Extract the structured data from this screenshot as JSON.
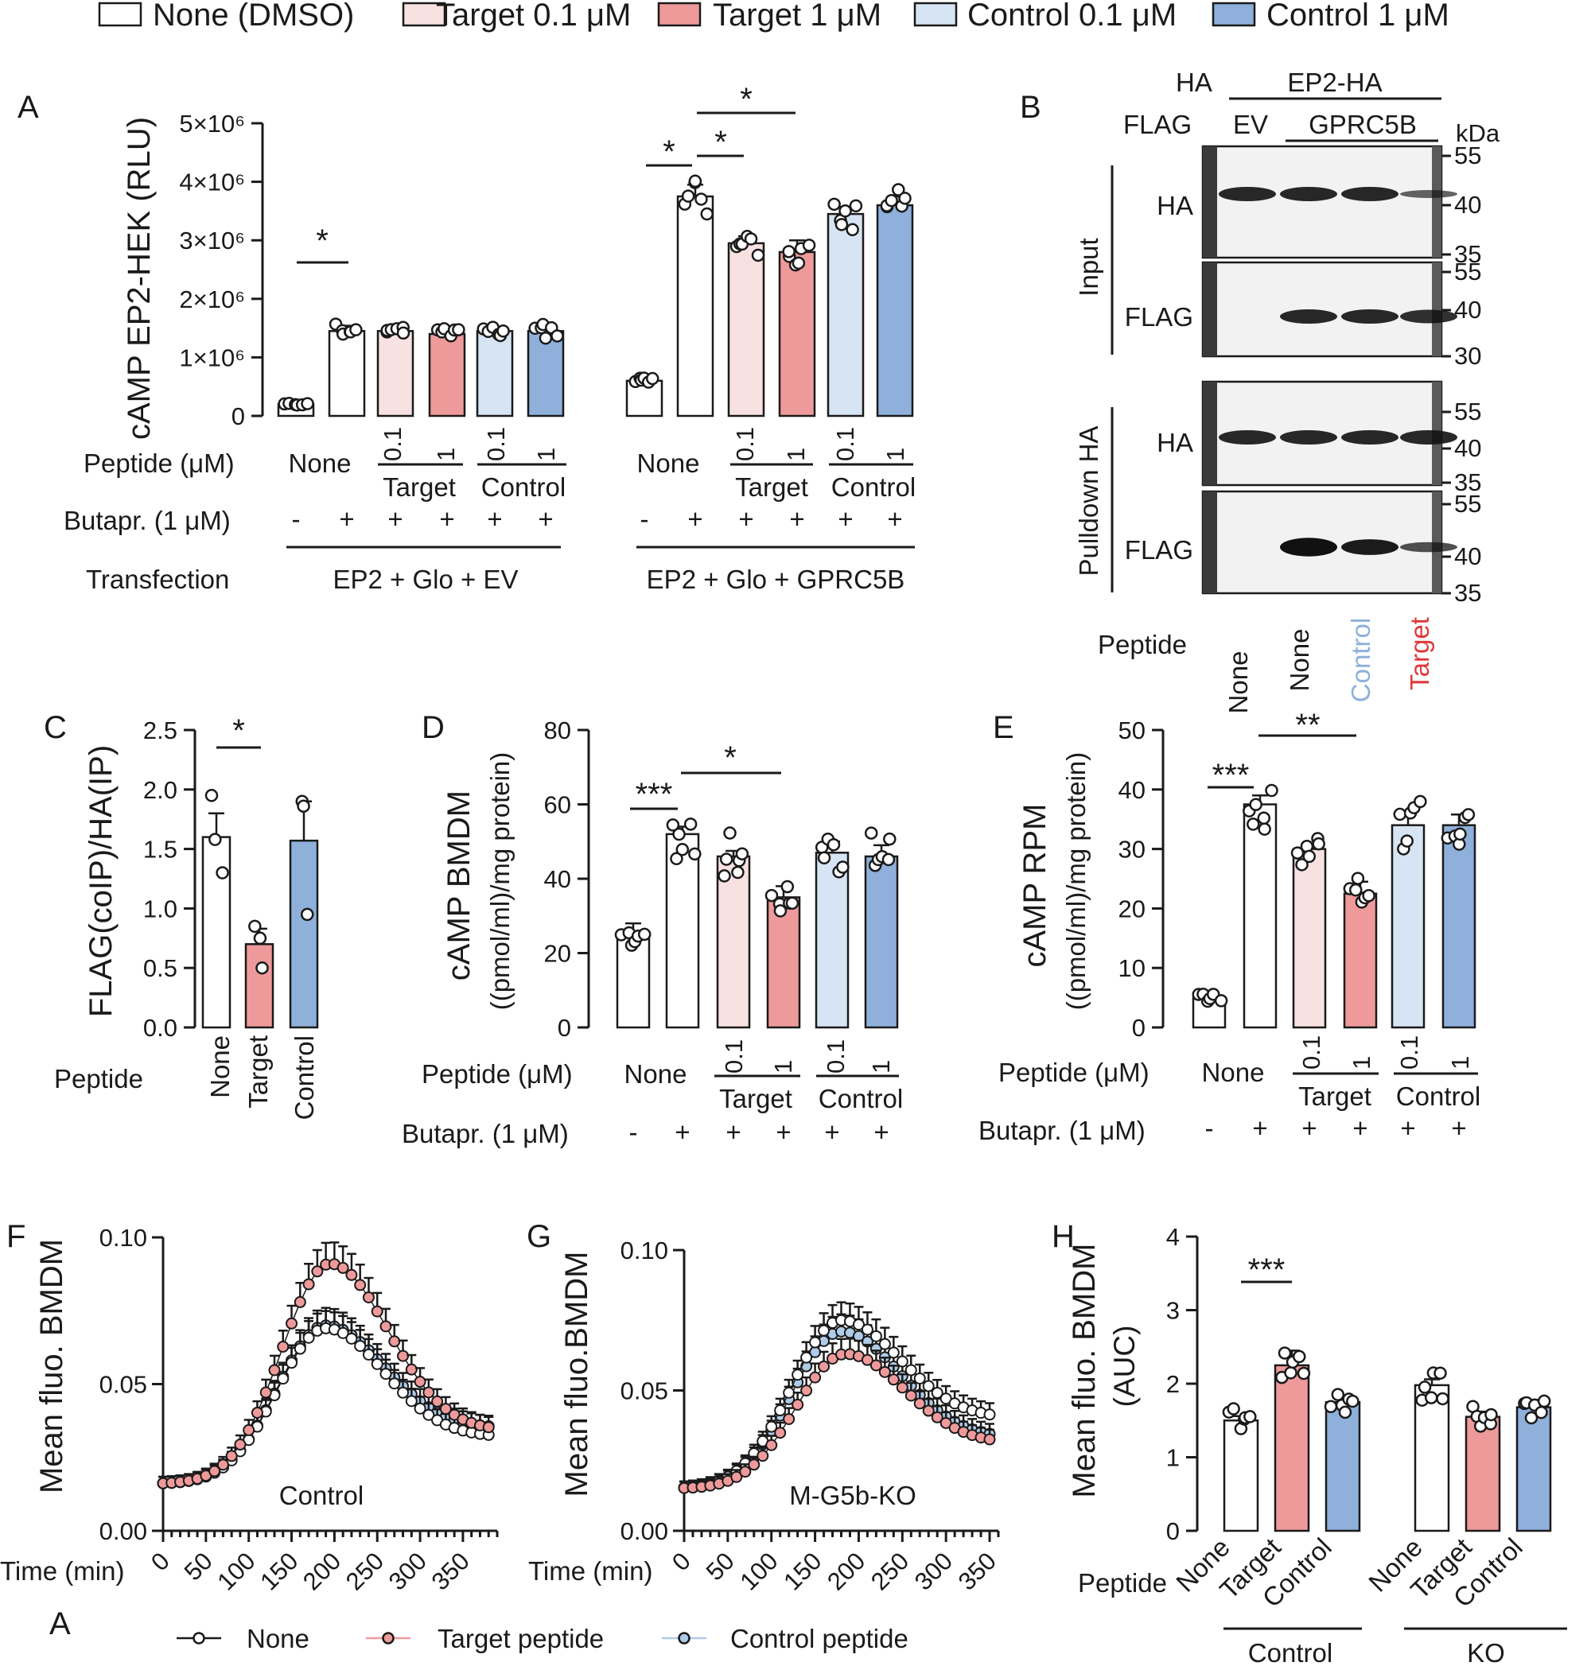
{
  "legend_top": {
    "items": [
      {
        "label": "None (DMSO)",
        "color": "#ffffff"
      },
      {
        "label": "Target 0.1 μM",
        "color": "#f7e1e1"
      },
      {
        "label": "Target 1 μM",
        "color": "#ef9a9a"
      },
      {
        "label": "Control 0.1 μM",
        "color": "#d6e4f3"
      },
      {
        "label": "Control 1 μM",
        "color": "#8eb0db"
      }
    ]
  },
  "colors": {
    "none": "#ffffff",
    "target_low": "#f7e1e1",
    "target_high": "#ef9a9a",
    "control_low": "#d6e4f3",
    "control_high": "#8eb0db",
    "control_text": "#8eb0db",
    "target_text": "#e0383a"
  },
  "panel_labels": {
    "A": "A",
    "B": "B",
    "C": "C",
    "D": "D",
    "E": "E",
    "F": "F",
    "G": "G",
    "H": "H",
    "bottom_a": "A"
  },
  "common": {
    "peptide_um": "Peptide (μM)",
    "butapr": "Butapr. (1 μM)",
    "none": "None",
    "target": "Target",
    "control": "Control",
    "dose_low": "0.1",
    "dose_high": "1",
    "minus": "-",
    "plus": "+",
    "peptide": "Peptide",
    "sig1": "*",
    "sig2": "**",
    "sig3": "***"
  },
  "chart_data": [
    {
      "id": "A",
      "type": "bar",
      "ylabel": "cAMP EP2-HEK (RLU)",
      "ylim": [
        0,
        5000000
      ],
      "ytick_labels": [
        "0",
        "1×10⁶",
        "2×10⁶",
        "3×10⁶",
        "4×10⁶",
        "5×10⁶"
      ],
      "transfection_label": "Transfection",
      "groups": [
        "EP2 + Glo + EV",
        "EP2 + Glo + GPRC5B"
      ],
      "categories": [
        "None -",
        "None +",
        "Target 0.1",
        "Target 1",
        "Control 0.1",
        "Control 1"
      ],
      "series": [
        {
          "name": "EP2 + Glo + EV",
          "values": [
            200000,
            1450000,
            1450000,
            1400000,
            1450000,
            1450000
          ]
        },
        {
          "name": "EP2 + Glo + GPRC5B",
          "values": [
            600000,
            3750000,
            2950000,
            2800000,
            3450000,
            3600000
          ]
        }
      ],
      "errors": [
        [
          30000,
          90000,
          70000,
          70000,
          70000,
          90000
        ],
        [
          100000,
          200000,
          120000,
          200000,
          120000,
          150000
        ]
      ],
      "significance": [
        "*",
        "*",
        "*",
        "*"
      ]
    },
    {
      "id": "C",
      "type": "bar",
      "ylabel": "FLAG(coIP)/HA(IP)",
      "ylim": [
        0,
        2.5
      ],
      "yticks": [
        "0.0",
        "0.5",
        "1.0",
        "1.5",
        "2.0",
        "2.5"
      ],
      "categories": [
        "None",
        "Target",
        "Control"
      ],
      "values": [
        1.6,
        0.7,
        1.57
      ],
      "errors": [
        0.2,
        0.13,
        0.33
      ],
      "points": [
        [
          1.95,
          1.58,
          1.3
        ],
        [
          0.85,
          0.75,
          0.5
        ],
        [
          1.9,
          1.86,
          0.95
        ]
      ],
      "significance": [
        "*"
      ]
    },
    {
      "id": "D",
      "type": "bar",
      "ylabel": "cAMP BMDM ((pmol/ml)/mg protein)",
      "ylim": [
        0,
        80
      ],
      "yticks": [
        "0",
        "20",
        "40",
        "60",
        "80"
      ],
      "categories": [
        "None -",
        "None +",
        "Target 0.1",
        "Target 1",
        "Control 0.1",
        "Control 1"
      ],
      "values": [
        25,
        52,
        46,
        35,
        47,
        46
      ],
      "errors": [
        3,
        2,
        1.5,
        3,
        3,
        3
      ],
      "significance": [
        "***",
        "*"
      ]
    },
    {
      "id": "E",
      "type": "bar",
      "ylabel": "cAMP RPM ((pmol/ml)/mg protein)",
      "ylim": [
        0,
        50
      ],
      "yticks": [
        "0",
        "10",
        "20",
        "30",
        "40",
        "50"
      ],
      "categories": [
        "None -",
        "None +",
        "Target 0.1",
        "Target 1",
        "Control 0.1",
        "Control 1"
      ],
      "values": [
        5,
        37.5,
        30,
        22.5,
        34,
        34
      ],
      "errors": [
        0.3,
        1.5,
        1,
        2,
        1.8,
        1.8
      ],
      "significance": [
        "***",
        "**"
      ]
    },
    {
      "id": "F",
      "type": "line",
      "title": "Control",
      "ylabel": "Mean fluo. BMDM",
      "xlabel": "Time (min)",
      "ylim": [
        0,
        0.1
      ],
      "xlim": [
        0,
        380
      ],
      "yticks": [
        "0.00",
        "0.05",
        "0.10"
      ],
      "xticks": [
        "0",
        "50",
        "100",
        "150",
        "200",
        "250",
        "300",
        "350"
      ],
      "series": [
        {
          "name": "None",
          "peak": 0.069,
          "tpeak": 190,
          "base": 0.016,
          "end": 0.032
        },
        {
          "name": "Target peptide",
          "peak": 0.091,
          "tpeak": 195,
          "base": 0.016,
          "end": 0.034
        },
        {
          "name": "Control peptide",
          "peak": 0.07,
          "tpeak": 190,
          "base": 0.016,
          "end": 0.035
        }
      ]
    },
    {
      "id": "G",
      "type": "line",
      "title": "M-G5b-KO",
      "ylabel": "Mean fluo.BMDM",
      "xlabel": "Time (min)",
      "ylim": [
        0,
        0.1
      ],
      "xlim": [
        0,
        355
      ],
      "yticks": [
        "0.00",
        "0.05",
        "0.10"
      ],
      "xticks": [
        "0",
        "50",
        "100",
        "150",
        "200",
        "250",
        "300",
        "350"
      ],
      "series": [
        {
          "name": "None",
          "peak": 0.075,
          "tpeak": 180,
          "base": 0.015,
          "end": 0.04
        },
        {
          "name": "Target peptide",
          "peak": 0.063,
          "tpeak": 185,
          "base": 0.015,
          "end": 0.031
        },
        {
          "name": "Control peptide",
          "peak": 0.071,
          "tpeak": 180,
          "base": 0.015,
          "end": 0.033
        }
      ]
    },
    {
      "id": "H",
      "type": "bar",
      "ylabel": "Mean fluo. BMDM (AUC)",
      "ylim": [
        0,
        4
      ],
      "yticks": [
        "0",
        "1",
        "2",
        "3",
        "4"
      ],
      "categories": [
        "None",
        "Target",
        "Control",
        "None",
        "Target",
        "Control"
      ],
      "groups": [
        "Control",
        "KO"
      ],
      "values": [
        1.5,
        2.25,
        1.75,
        1.98,
        1.55,
        1.68
      ],
      "errors": [
        0.06,
        0.2,
        0.07,
        0.08,
        0.07,
        0.1
      ],
      "significance": [
        "***"
      ]
    }
  ],
  "blot": {
    "header_ha": "HA",
    "header_ep2": "EP2-HA",
    "header_flag": "FLAG",
    "header_ev": "EV",
    "header_gprc": "GPRC5B",
    "kda": "kDa",
    "input": "Input",
    "pulldown": "Pulldown HA",
    "row_labels": [
      "HA",
      "FLAG",
      "HA",
      "FLAG"
    ],
    "markers": [
      [
        "55",
        "40",
        "35"
      ],
      [
        "55",
        "40",
        "30"
      ],
      [
        "55",
        "40",
        "35"
      ],
      [
        "55",
        "40",
        "35"
      ]
    ],
    "lanes": [
      "None",
      "None",
      "Control",
      "Target"
    ]
  },
  "legend_bottom": {
    "items": [
      {
        "label": "None",
        "color": "#ffffff"
      },
      {
        "label": "Target peptide",
        "color": "#ef9a9a"
      },
      {
        "label": "Control peptide",
        "color": "#aecbe8"
      }
    ]
  }
}
